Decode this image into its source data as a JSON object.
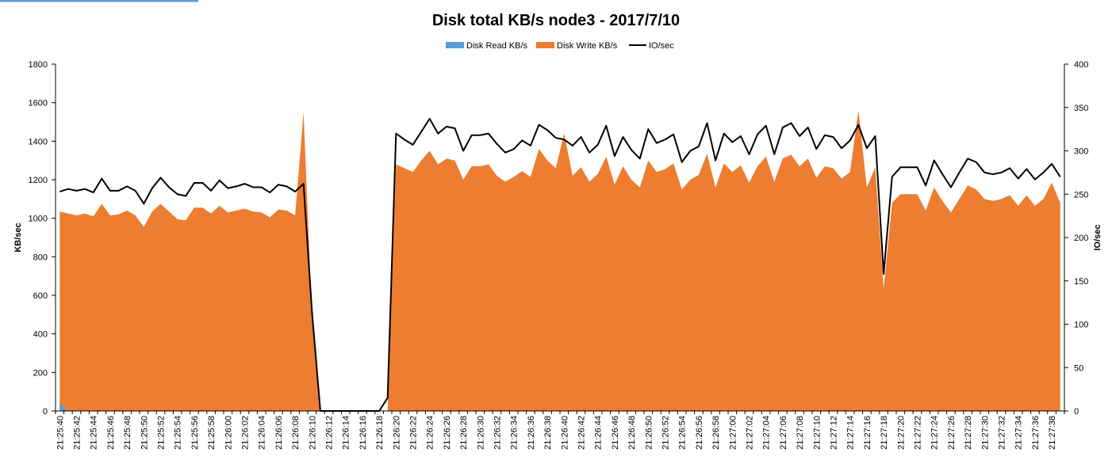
{
  "chart_data": {
    "type": "area",
    "title": "Disk total KB/s node3 - 2017/7/10",
    "ylabel": "KB/sec",
    "y2label": "IO/sec",
    "ylim": [
      0,
      1800
    ],
    "y2lim": [
      0,
      400
    ],
    "yticks": [
      0,
      200,
      400,
      600,
      800,
      1000,
      1200,
      1400,
      1600,
      1800
    ],
    "y2ticks": [
      0,
      50,
      100,
      150,
      200,
      250,
      300,
      350,
      400
    ],
    "grid": false,
    "legend_position": "top-center",
    "x": [
      "21:25:40",
      "21:25:41",
      "21:25:42",
      "21:25:43",
      "21:25:44",
      "21:25:45",
      "21:25:46",
      "21:25:47",
      "21:25:48",
      "21:25:49",
      "21:25:50",
      "21:25:51",
      "21:25:52",
      "21:25:53",
      "21:25:54",
      "21:25:55",
      "21:25:56",
      "21:25:57",
      "21:25:58",
      "21:25:59",
      "21:26:00",
      "21:26:01",
      "21:26:02",
      "21:26:03",
      "21:26:04",
      "21:26:05",
      "21:26:06",
      "21:26:07",
      "21:26:08",
      "21:26:09",
      "21:26:10",
      "21:26:11",
      "21:26:12",
      "21:26:13",
      "21:26:14",
      "21:26:15",
      "21:26:16",
      "21:26:17",
      "21:26:18",
      "21:26:19",
      "21:26:20",
      "21:26:21",
      "21:26:22",
      "21:26:23",
      "21:26:24",
      "21:26:25",
      "21:26:26",
      "21:26:27",
      "21:26:28",
      "21:26:29",
      "21:26:30",
      "21:26:31",
      "21:26:32",
      "21:26:33",
      "21:26:34",
      "21:26:35",
      "21:26:36",
      "21:26:37",
      "21:26:38",
      "21:26:39",
      "21:26:40",
      "21:26:41",
      "21:26:42",
      "21:26:43",
      "21:26:44",
      "21:26:45",
      "21:26:46",
      "21:26:47",
      "21:26:48",
      "21:26:49",
      "21:26:50",
      "21:26:51",
      "21:26:52",
      "21:26:53",
      "21:26:54",
      "21:26:55",
      "21:26:56",
      "21:26:57",
      "21:26:58",
      "21:26:59",
      "21:27:00",
      "21:27:01",
      "21:27:02",
      "21:27:03",
      "21:27:04",
      "21:27:05",
      "21:27:06",
      "21:27:07",
      "21:27:08",
      "21:27:09",
      "21:27:10",
      "21:27:11",
      "21:27:12",
      "21:27:13",
      "21:27:14",
      "21:27:15",
      "21:27:16",
      "21:27:17",
      "21:27:18",
      "21:27:19",
      "21:27:20",
      "21:27:21",
      "21:27:22",
      "21:27:23",
      "21:27:24",
      "21:27:25",
      "21:27:26",
      "21:27:27",
      "21:27:28",
      "21:27:29",
      "21:27:30",
      "21:27:31",
      "21:27:32",
      "21:27:33",
      "21:27:34",
      "21:27:35",
      "21:27:36",
      "21:27:37",
      "21:27:38",
      "21:27:39"
    ],
    "series": [
      {
        "name": "Disk Read KB/s",
        "axis": "left",
        "style": "area",
        "color": "#5b9bd5",
        "values": [
          40,
          0,
          0,
          0,
          0,
          0,
          0,
          0,
          0,
          0,
          0,
          0,
          0,
          0,
          0,
          0,
          0,
          0,
          0,
          0,
          0,
          0,
          0,
          0,
          0,
          0,
          0,
          0,
          0,
          0,
          0,
          0,
          0,
          0,
          0,
          0,
          0,
          0,
          0,
          0,
          0,
          0,
          0,
          0,
          0,
          0,
          0,
          0,
          0,
          0,
          0,
          0,
          0,
          0,
          0,
          0,
          0,
          0,
          0,
          0,
          0,
          0,
          0,
          0,
          0,
          0,
          0,
          0,
          0,
          0,
          0,
          0,
          0,
          0,
          0,
          0,
          0,
          0,
          0,
          0,
          0,
          0,
          0,
          0,
          0,
          0,
          0,
          0,
          0,
          0,
          0,
          0,
          0,
          0,
          0,
          0,
          0,
          0,
          0,
          0,
          0,
          0,
          0,
          0,
          0,
          0,
          0,
          0,
          0,
          0,
          0,
          0,
          0,
          0,
          0,
          0,
          0,
          0,
          0,
          0
        ]
      },
      {
        "name": "Disk Write KB/s",
        "axis": "left",
        "style": "area",
        "color": "#ed7d31",
        "values": [
          1035,
          1025,
          1015,
          1025,
          1010,
          1075,
          1015,
          1020,
          1040,
          1015,
          955,
          1035,
          1075,
          1035,
          995,
          990,
          1055,
          1055,
          1025,
          1065,
          1030,
          1040,
          1050,
          1035,
          1030,
          1005,
          1045,
          1040,
          1015,
          1550,
          500,
          0,
          0,
          0,
          0,
          0,
          0,
          0,
          0,
          0,
          1280,
          1260,
          1240,
          1300,
          1350,
          1280,
          1310,
          1300,
          1200,
          1270,
          1270,
          1280,
          1220,
          1190,
          1215,
          1245,
          1215,
          1360,
          1300,
          1260,
          1440,
          1220,
          1265,
          1190,
          1230,
          1320,
          1175,
          1270,
          1200,
          1160,
          1300,
          1240,
          1255,
          1285,
          1150,
          1200,
          1225,
          1335,
          1160,
          1285,
          1240,
          1275,
          1185,
          1270,
          1320,
          1190,
          1310,
          1330,
          1270,
          1310,
          1210,
          1270,
          1260,
          1205,
          1240,
          1560,
          1160,
          1265,
          635,
          1080,
          1125,
          1125,
          1125,
          1040,
          1160,
          1090,
          1030,
          1100,
          1170,
          1150,
          1100,
          1090,
          1100,
          1120,
          1065,
          1120,
          1065,
          1100,
          1185,
          1080
        ]
      },
      {
        "name": "IO/sec",
        "axis": "right",
        "style": "line",
        "color": "#000000",
        "values": [
          253,
          256,
          254,
          256,
          252,
          268,
          254,
          254,
          259,
          254,
          239,
          257,
          269,
          258,
          250,
          248,
          263,
          263,
          254,
          266,
          257,
          259,
          262,
          258,
          258,
          252,
          261,
          259,
          253,
          262,
          115,
          0,
          0,
          0,
          0,
          0,
          0,
          0,
          0,
          15,
          320,
          313,
          307,
          322,
          337,
          320,
          328,
          326,
          300,
          318,
          318,
          320,
          308,
          298,
          302,
          312,
          306,
          330,
          324,
          315,
          313,
          306,
          316,
          298,
          307,
          329,
          294,
          316,
          301,
          291,
          325,
          309,
          313,
          319,
          287,
          300,
          305,
          332,
          289,
          320,
          310,
          317,
          296,
          319,
          329,
          296,
          327,
          332,
          317,
          327,
          302,
          318,
          316,
          303,
          312,
          330,
          303,
          317,
          158,
          270,
          281,
          281,
          281,
          260,
          289,
          273,
          258,
          275,
          291,
          287,
          275,
          273,
          275,
          280,
          268,
          279,
          267,
          275,
          285,
          270
        ]
      }
    ]
  }
}
